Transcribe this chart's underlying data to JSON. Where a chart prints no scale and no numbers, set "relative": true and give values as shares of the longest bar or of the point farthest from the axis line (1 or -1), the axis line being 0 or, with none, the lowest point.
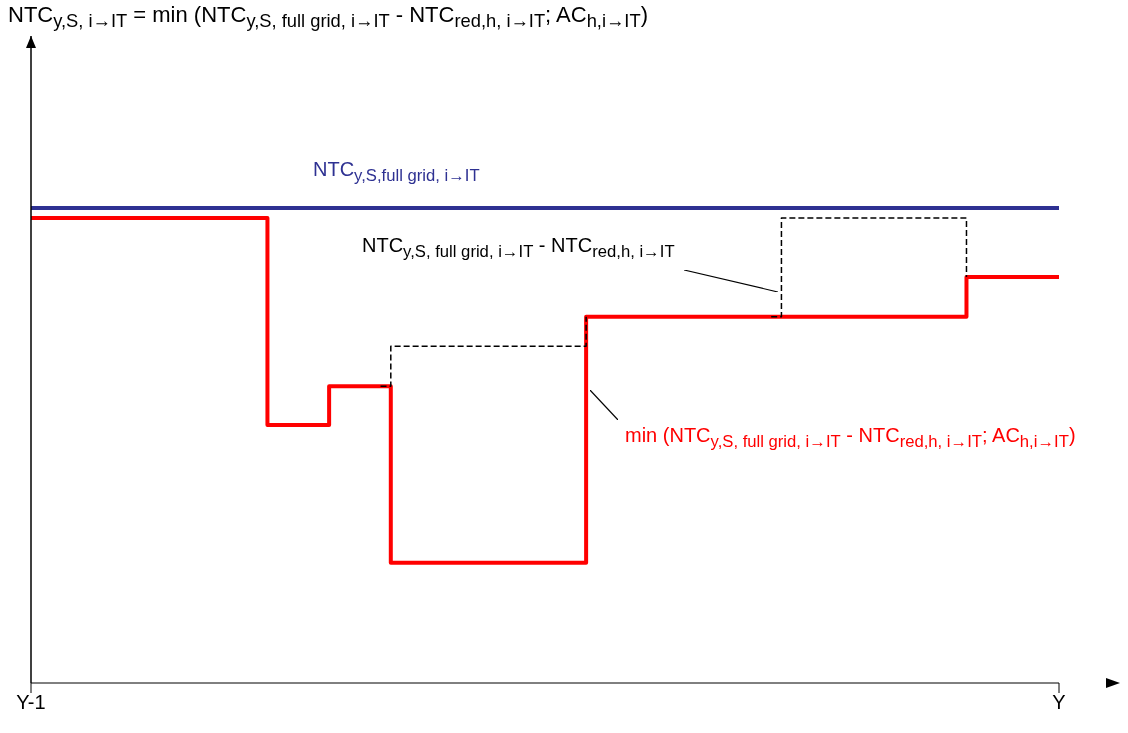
{
  "chart_data": {
    "type": "step",
    "title": "NTC$_{y,S, i→IT}$ = min (NTC$_{y,S, full grid, i→IT}$ - NTC$_{red,h, i→IT}$; AC$_{h,i→IT}$)",
    "relative": true,
    "categories": [
      "Y-1",
      null,
      null,
      null,
      null,
      null,
      null,
      null,
      null,
      null,
      null,
      null,
      null,
      null,
      null,
      null,
      null,
      null,
      null,
      null,
      null,
      null,
      null,
      null,
      null,
      null,
      null,
      null,
      null,
      null,
      null,
      null,
      null,
      null,
      null,
      null,
      null,
      null,
      null,
      null,
      null,
      null,
      null,
      null,
      null,
      null,
      null,
      null,
      null,
      null,
      null,
      null,
      null,
      null,
      null,
      null,
      null,
      null,
      null,
      null,
      null,
      null,
      null,
      null,
      null,
      null,
      null,
      null,
      null,
      null,
      null,
      null,
      null,
      null,
      null,
      null,
      null,
      null,
      null,
      null,
      null,
      null,
      null,
      null,
      null,
      null,
      null,
      null,
      null,
      null,
      null,
      null,
      null,
      null,
      null,
      null,
      null,
      null,
      null,
      null,
      "Y"
    ],
    "series": [
      {
        "name": "NTC$_{y,S,full grid, i→IT}$",
        "color": "#2e3192",
        "values": [
          1,
          1,
          1,
          1,
          1,
          1,
          1,
          1,
          1,
          1,
          1,
          1,
          1,
          1,
          1,
          1,
          1,
          1,
          1,
          1,
          1,
          1,
          1,
          1,
          1,
          1,
          1,
          1,
          1,
          1,
          1,
          1,
          1,
          1,
          1,
          1,
          1,
          1,
          1,
          1,
          1,
          1,
          1,
          1,
          1,
          1,
          1,
          1,
          1,
          1,
          1,
          1,
          1,
          1,
          1,
          1,
          1,
          1,
          1,
          1,
          1,
          1,
          1,
          1,
          1,
          1,
          1,
          1,
          1,
          1,
          1,
          1,
          1,
          1,
          1,
          1,
          1,
          1,
          1,
          1,
          1,
          1,
          1,
          1,
          1,
          1,
          1,
          1,
          1,
          1,
          1,
          1,
          1,
          1,
          1,
          1,
          1,
          1,
          1,
          1,
          1
        ]
      },
      {
        "name": "NTC$_{y,S, full grid, i→IT}$ - NTC$_{red,h, i→IT}$",
        "line_style": "dashed",
        "color": "#000000",
        "values": [
          null,
          null,
          null,
          null,
          null,
          null,
          null,
          null,
          null,
          null,
          null,
          null,
          null,
          null,
          null,
          null,
          null,
          null,
          null,
          null,
          null,
          null,
          null,
          null,
          null,
          null,
          null,
          null,
          null,
          null,
          null,
          null,
          null,
          null,
          0.625,
          0.709,
          0.709,
          0.709,
          0.709,
          0.709,
          0.709,
          0.709,
          0.709,
          0.709,
          0.709,
          0.709,
          0.709,
          0.709,
          0.709,
          0.709,
          0.709,
          0.709,
          0.709,
          0.709,
          0.771,
          null,
          null,
          null,
          null,
          null,
          null,
          null,
          null,
          null,
          null,
          null,
          null,
          null,
          null,
          null,
          null,
          null,
          0.771,
          0.979,
          0.979,
          0.979,
          0.979,
          0.979,
          0.979,
          0.979,
          0.979,
          0.979,
          0.979,
          0.979,
          0.979,
          0.979,
          0.979,
          0.979,
          0.979,
          0.979,
          0.979,
          0.855,
          null,
          null,
          null,
          null,
          null,
          null,
          null,
          null,
          null
        ]
      },
      {
        "name": "min (NTC$_{y,S, full grid, i→IT}$ - NTC$_{red,h, i→IT}$; AC$_{h,i→IT}$)",
        "color": "#ff0000",
        "values": [
          0.979,
          0.979,
          0.979,
          0.979,
          0.979,
          0.979,
          0.979,
          0.979,
          0.979,
          0.979,
          0.979,
          0.979,
          0.979,
          0.979,
          0.979,
          0.979,
          0.979,
          0.979,
          0.979,
          0.979,
          0.979,
          0.979,
          0.979,
          0.543,
          0.543,
          0.543,
          0.543,
          0.543,
          0.543,
          0.625,
          0.625,
          0.625,
          0.625,
          0.625,
          0.625,
          0.253,
          0.253,
          0.253,
          0.253,
          0.253,
          0.253,
          0.253,
          0.253,
          0.253,
          0.253,
          0.253,
          0.253,
          0.253,
          0.253,
          0.253,
          0.253,
          0.253,
          0.253,
          0.253,
          0.771,
          0.771,
          0.771,
          0.771,
          0.771,
          0.771,
          0.771,
          0.771,
          0.771,
          0.771,
          0.771,
          0.771,
          0.771,
          0.771,
          0.771,
          0.771,
          0.771,
          0.771,
          0.771,
          0.771,
          0.771,
          0.771,
          0.771,
          0.771,
          0.771,
          0.771,
          0.771,
          0.771,
          0.771,
          0.771,
          0.771,
          0.771,
          0.771,
          0.771,
          0.771,
          0.771,
          0.771,
          0.855,
          0.855,
          0.855,
          0.855,
          0.855,
          0.855,
          0.855,
          0.855,
          0.855,
          0.855
        ]
      }
    ]
  }
}
